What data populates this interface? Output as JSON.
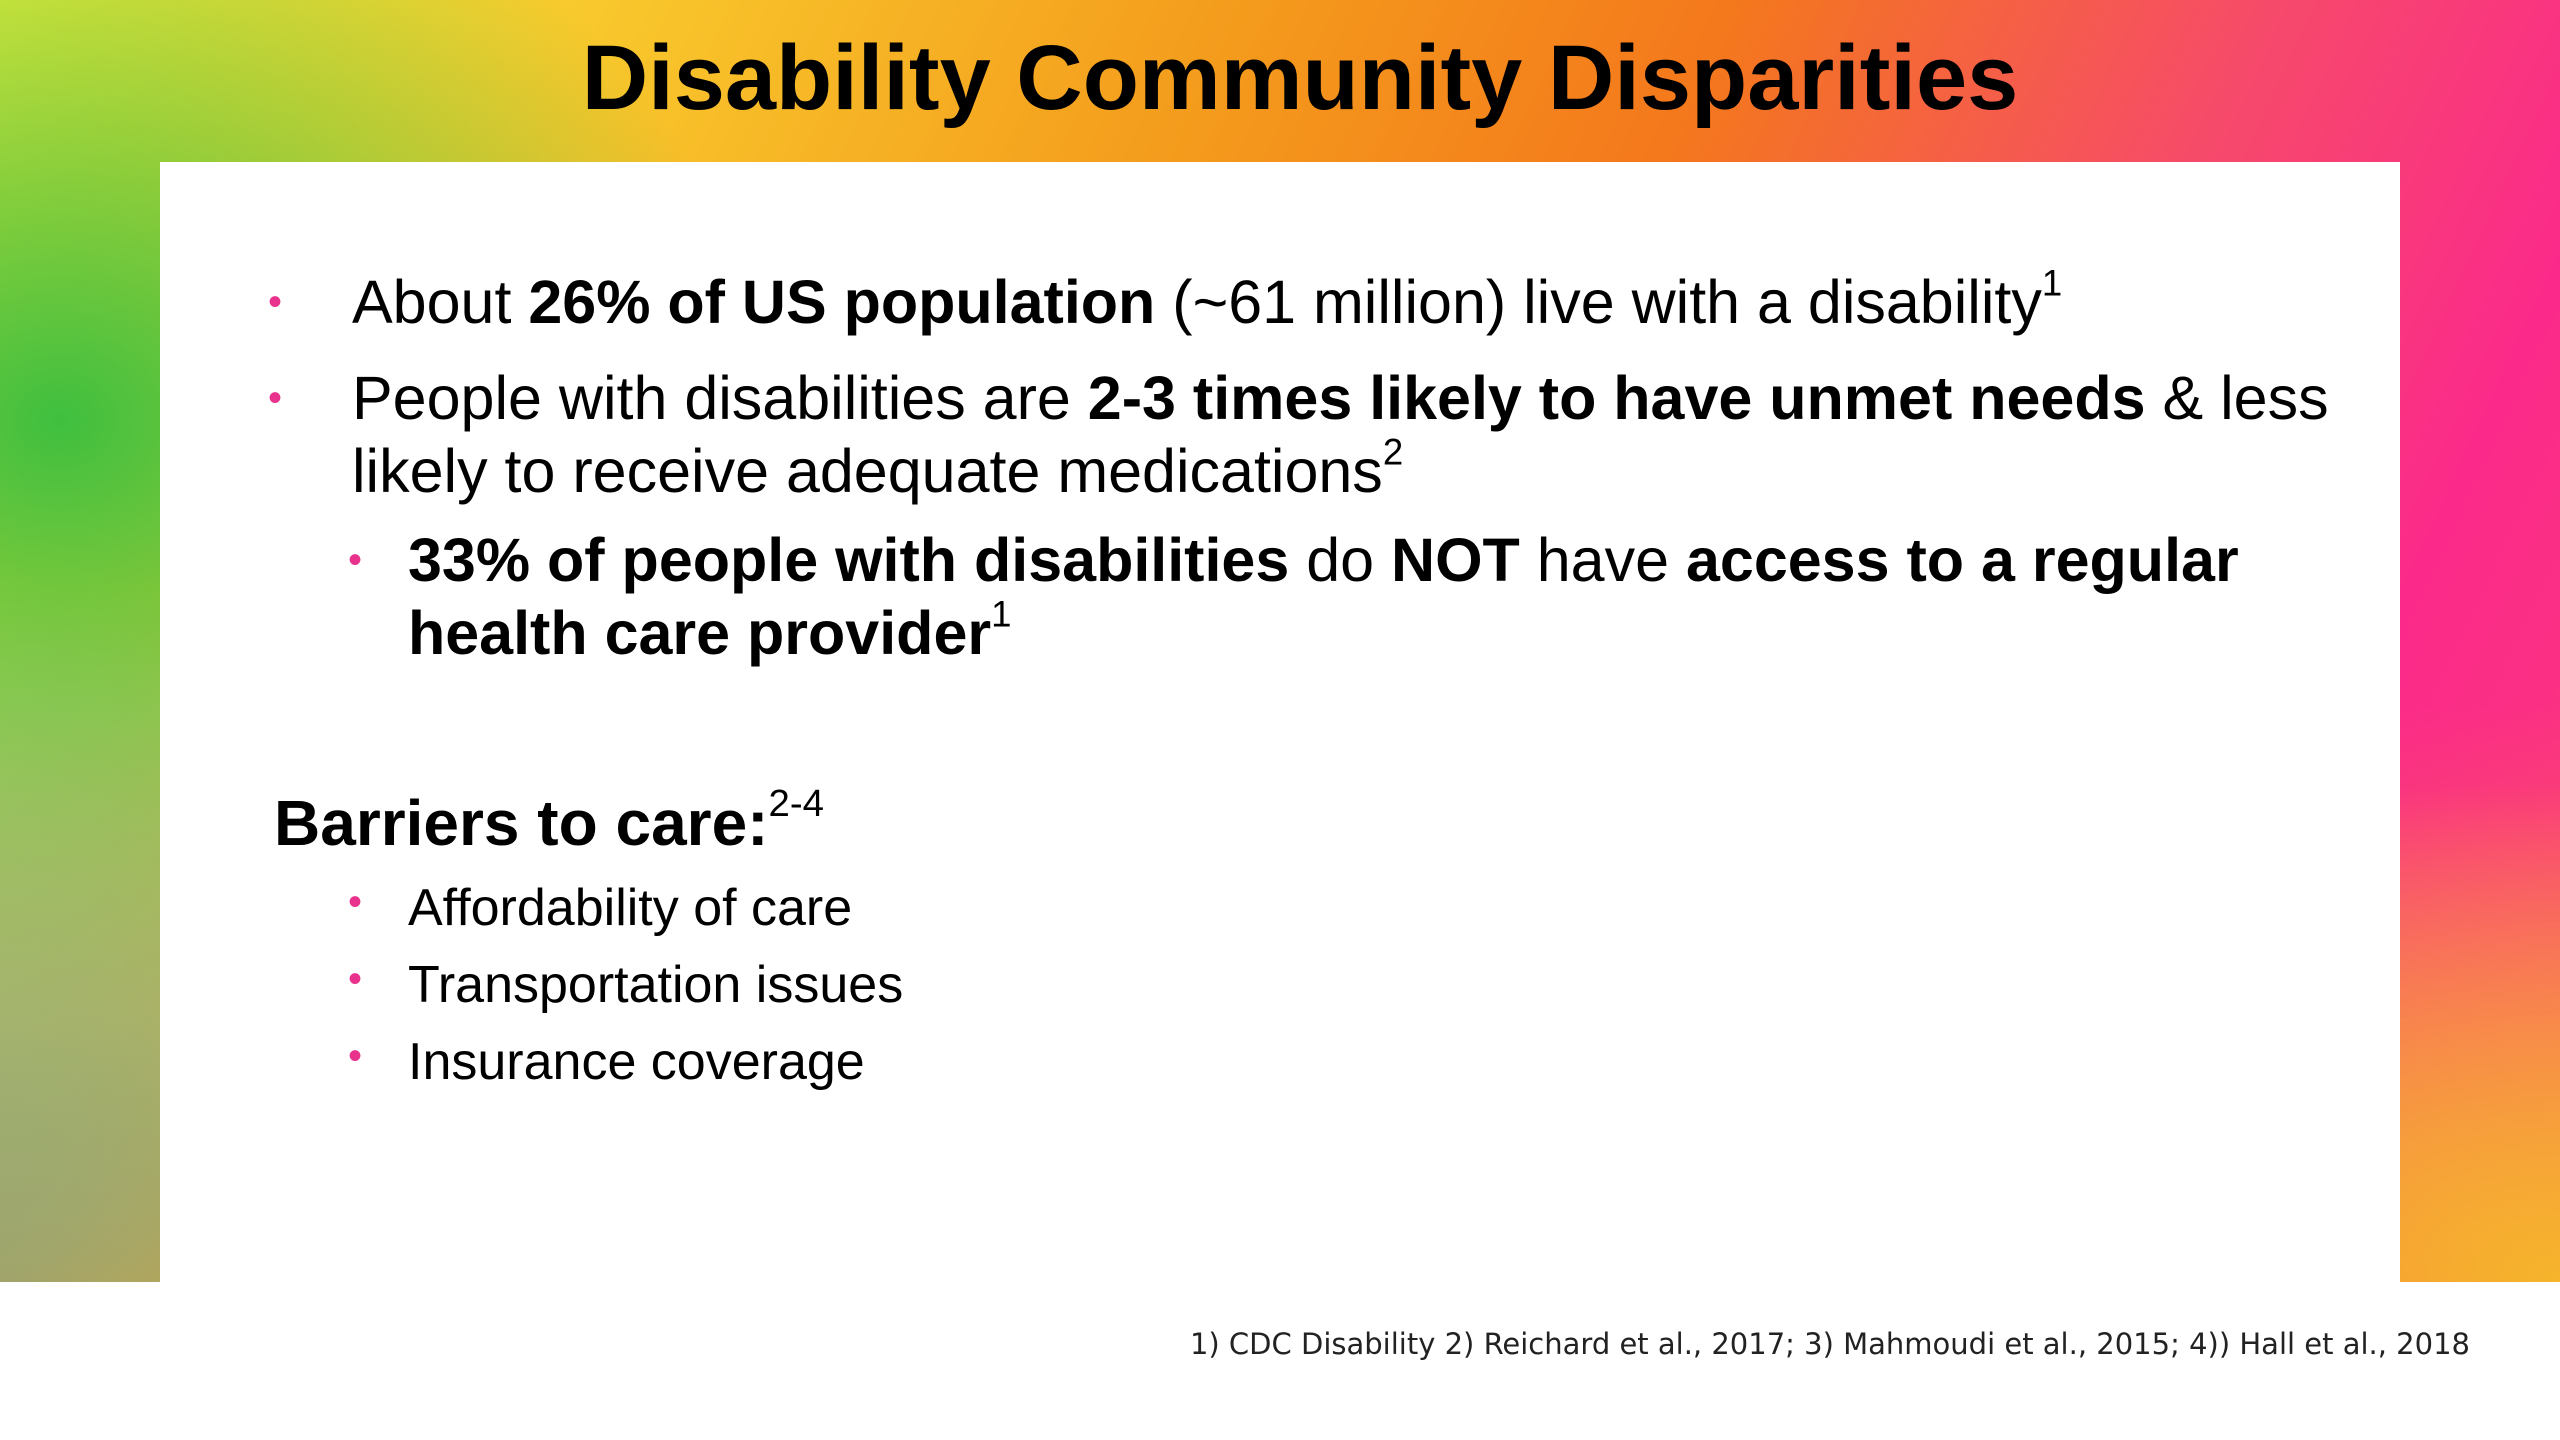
{
  "slide": {
    "title": "Disability Community Disparities",
    "colors": {
      "gradient_left": "#f7ee3a",
      "gradient_mid": "#f49a1c",
      "gradient_right": "#fb2a8a",
      "bullet": "#e8328c",
      "text": "#111111"
    }
  },
  "bullets": [
    {
      "parts": [
        {
          "text": "About ",
          "bold": false
        },
        {
          "text": "26% of US population",
          "bold": true
        },
        {
          "text": " (~61 million) live with a disability",
          "bold": false
        }
      ],
      "sup": "1"
    },
    {
      "parts": [
        {
          "text": "People with disabilities are ",
          "bold": false
        },
        {
          "text": "2-3 times likely to have unmet needs",
          "bold": true
        },
        {
          "text": " & less likely to receive adequate medications",
          "bold": false
        }
      ],
      "sup": "2"
    }
  ],
  "sub_bullets": [
    {
      "parts": [
        {
          "text": "33% of people with disabilities",
          "bold": true
        },
        {
          "text": " do ",
          "bold": false
        },
        {
          "text": "NOT",
          "bold": true
        },
        {
          "text": " have ",
          "bold": false
        },
        {
          "text": "access to a regular health care provider",
          "bold": true
        }
      ],
      "sup": "1"
    }
  ],
  "barriers": {
    "heading": "Barriers to care:",
    "heading_sup": "2-4",
    "items": [
      "Affordability of care",
      "Transportation issues",
      "Insurance coverage"
    ]
  },
  "footnote": "1) CDC Disability 2) Reichard et al., 2017; 3) Mahmoudi et al., 2015; 4)) Hall et al., 2018"
}
